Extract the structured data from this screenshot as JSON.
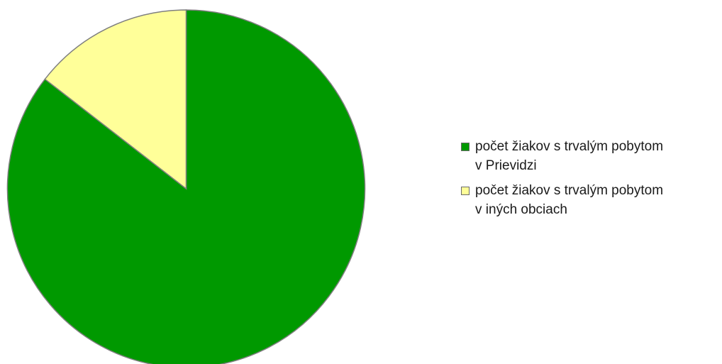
{
  "chart_data": {
    "type": "pie",
    "title": "",
    "slices": [
      {
        "label_line1": "počet žiakov s trvalým pobytom",
        "label_line2": "v Prievidzi",
        "value": 85.5,
        "color": "#009900"
      },
      {
        "label_line1": "počet žiakov s trvalým pobytom",
        "label_line2": "v iných obciach",
        "value": 14.5,
        "color": "#ffff99"
      }
    ],
    "legend_position": "right",
    "slice_border_color": "#7f7f7f"
  }
}
